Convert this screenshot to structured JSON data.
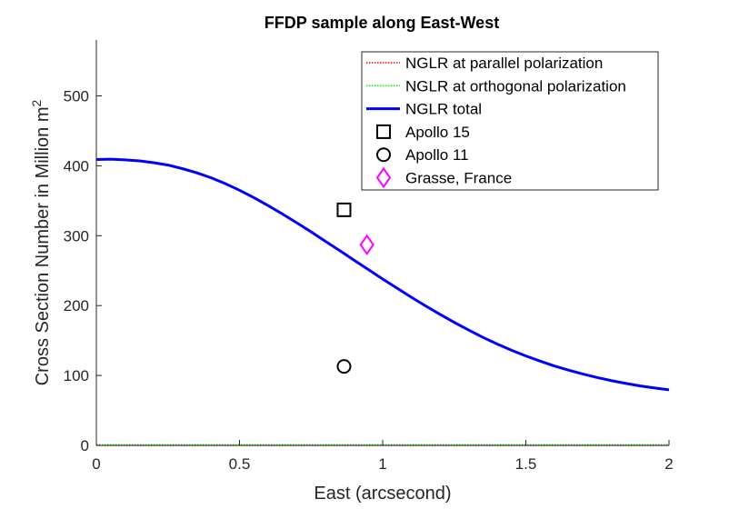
{
  "chart_data": {
    "type": "line",
    "title": "FFDP sample along East-West",
    "xlabel": "East (arcsecond)",
    "ylabel": "Cross Section Number in Million m",
    "ylabel_superscript": "2",
    "xlim": [
      0,
      2
    ],
    "ylim": [
      0,
      580
    ],
    "xticks": [
      0,
      0.5,
      1,
      1.5,
      2
    ],
    "xtick_labels": [
      "0",
      "0.5",
      "1",
      "1.5",
      "2"
    ],
    "yticks": [
      0,
      100,
      200,
      300,
      400,
      500
    ],
    "ytick_labels": [
      "0",
      "100",
      "200",
      "300",
      "400",
      "500"
    ],
    "grid": false,
    "legend_position": "top-right",
    "series": [
      {
        "name": "NGLR at parallel polarization",
        "kind": "line",
        "style": "dotted",
        "color": "#ff0000",
        "x": [
          0,
          0.25,
          0.5,
          0.75,
          1,
          1.25,
          1.5,
          1.75,
          2
        ],
        "y": [
          0,
          0,
          0,
          0,
          0,
          0,
          0,
          0,
          0
        ]
      },
      {
        "name": "NGLR at orthogonal polarization",
        "kind": "line",
        "style": "dotted",
        "color": "#00ff00",
        "x": [
          0,
          0.25,
          0.5,
          0.75,
          1,
          1.25,
          1.5,
          1.75,
          2
        ],
        "y": [
          1,
          1,
          1,
          1,
          1,
          1,
          1,
          1,
          1
        ]
      },
      {
        "name": "NGLR total",
        "kind": "line",
        "style": "solid",
        "color": "#0000ff",
        "x": [
          0,
          0.05,
          0.1,
          0.15,
          0.2,
          0.25,
          0.3,
          0.35,
          0.4,
          0.45,
          0.5,
          0.55,
          0.6,
          0.65,
          0.7,
          0.75,
          0.8,
          0.85,
          0.9,
          0.95,
          1,
          1.05,
          1.1,
          1.15,
          1.2,
          1.25,
          1.3,
          1.35,
          1.4,
          1.45,
          1.5,
          1.55,
          1.6,
          1.65,
          1.7,
          1.75,
          1.8,
          1.85,
          1.9,
          1.95,
          2
        ],
        "y": [
          409,
          409.5,
          408.5,
          407,
          404.5,
          401,
          396,
          390,
          383,
          374.5,
          365,
          354.5,
          343,
          331,
          318.5,
          305.5,
          292,
          278.5,
          265,
          251.5,
          238,
          225,
          212,
          199.5,
          187.5,
          176,
          165,
          154.5,
          145,
          136,
          128,
          120.5,
          113.5,
          107.5,
          102,
          97,
          92.5,
          88.5,
          85,
          82,
          79.5
        ]
      },
      {
        "name": "Apollo 15",
        "kind": "marker",
        "marker": "square",
        "color": "#000000",
        "x": [
          0.865
        ],
        "y": [
          337
        ]
      },
      {
        "name": "Apollo 11",
        "kind": "marker",
        "marker": "circle",
        "color": "#000000",
        "x": [
          0.865
        ],
        "y": [
          113
        ]
      },
      {
        "name": "Grasse, France",
        "kind": "marker",
        "marker": "diamond",
        "color": "#ff00ff",
        "x": [
          0.945
        ],
        "y": [
          287
        ]
      }
    ]
  }
}
